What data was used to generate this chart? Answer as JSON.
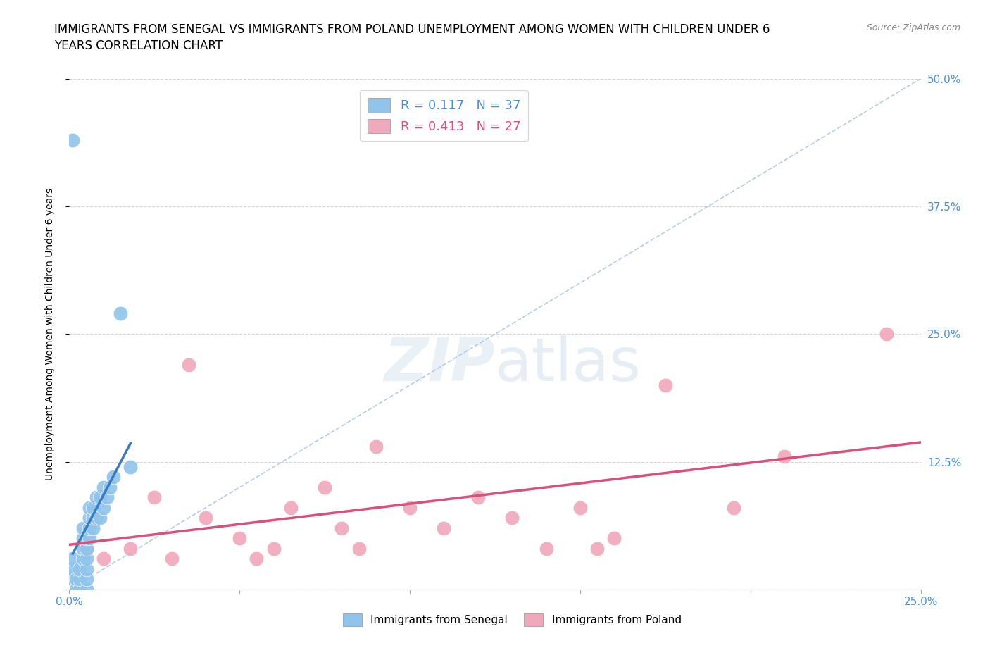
{
  "title_line1": "IMMIGRANTS FROM SENEGAL VS IMMIGRANTS FROM POLAND UNEMPLOYMENT AMONG WOMEN WITH CHILDREN UNDER 6",
  "title_line2": "YEARS CORRELATION CHART",
  "source": "Source: ZipAtlas.com",
  "ylabel": "Unemployment Among Women with Children Under 6 years",
  "xlim": [
    0.0,
    0.25
  ],
  "ylim": [
    0.0,
    0.5
  ],
  "xticks": [
    0.0,
    0.05,
    0.1,
    0.15,
    0.2,
    0.25
  ],
  "xtick_labels": [
    "0.0%",
    "",
    "",
    "",
    "",
    "25.0%"
  ],
  "yticks": [
    0.0,
    0.125,
    0.25,
    0.375,
    0.5
  ],
  "ytick_labels_right": [
    "",
    "12.5%",
    "25.0%",
    "37.5%",
    "50.0%"
  ],
  "senegal_R": 0.117,
  "senegal_N": 37,
  "poland_R": 0.413,
  "poland_N": 27,
  "senegal_color": "#90c4ea",
  "poland_color": "#f0a8bc",
  "senegal_line_color": "#3a7abf",
  "poland_line_color": "#d9507a",
  "diagonal_color": "#aac4e0",
  "background_color": "#ffffff",
  "grid_color": "#d0d0d0",
  "tick_color": "#4a90d9",
  "senegal_x": [
    0.001,
    0.001,
    0.001,
    0.001,
    0.002,
    0.002,
    0.003,
    0.003,
    0.003,
    0.004,
    0.004,
    0.004,
    0.004,
    0.005,
    0.005,
    0.005,
    0.005,
    0.005,
    0.005,
    0.006,
    0.006,
    0.006,
    0.006,
    0.007,
    0.007,
    0.007,
    0.008,
    0.008,
    0.009,
    0.009,
    0.01,
    0.01,
    0.011,
    0.012,
    0.013,
    0.015,
    0.018
  ],
  "senegal_y": [
    0.44,
    0.01,
    0.02,
    0.03,
    0.0,
    0.01,
    0.0,
    0.01,
    0.02,
    0.03,
    0.04,
    0.05,
    0.06,
    0.0,
    0.01,
    0.02,
    0.03,
    0.04,
    0.05,
    0.05,
    0.06,
    0.07,
    0.08,
    0.06,
    0.07,
    0.08,
    0.07,
    0.09,
    0.07,
    0.09,
    0.08,
    0.1,
    0.09,
    0.1,
    0.11,
    0.27,
    0.12
  ],
  "poland_x": [
    0.005,
    0.01,
    0.018,
    0.025,
    0.03,
    0.035,
    0.04,
    0.05,
    0.055,
    0.06,
    0.065,
    0.075,
    0.08,
    0.085,
    0.09,
    0.1,
    0.11,
    0.12,
    0.13,
    0.14,
    0.15,
    0.155,
    0.16,
    0.175,
    0.195,
    0.21,
    0.24
  ],
  "poland_y": [
    0.04,
    0.03,
    0.04,
    0.09,
    0.03,
    0.22,
    0.07,
    0.05,
    0.03,
    0.04,
    0.08,
    0.1,
    0.06,
    0.04,
    0.14,
    0.08,
    0.06,
    0.09,
    0.07,
    0.04,
    0.08,
    0.04,
    0.05,
    0.2,
    0.08,
    0.13,
    0.25
  ],
  "title_fontsize": 12,
  "label_fontsize": 10,
  "tick_fontsize": 11
}
